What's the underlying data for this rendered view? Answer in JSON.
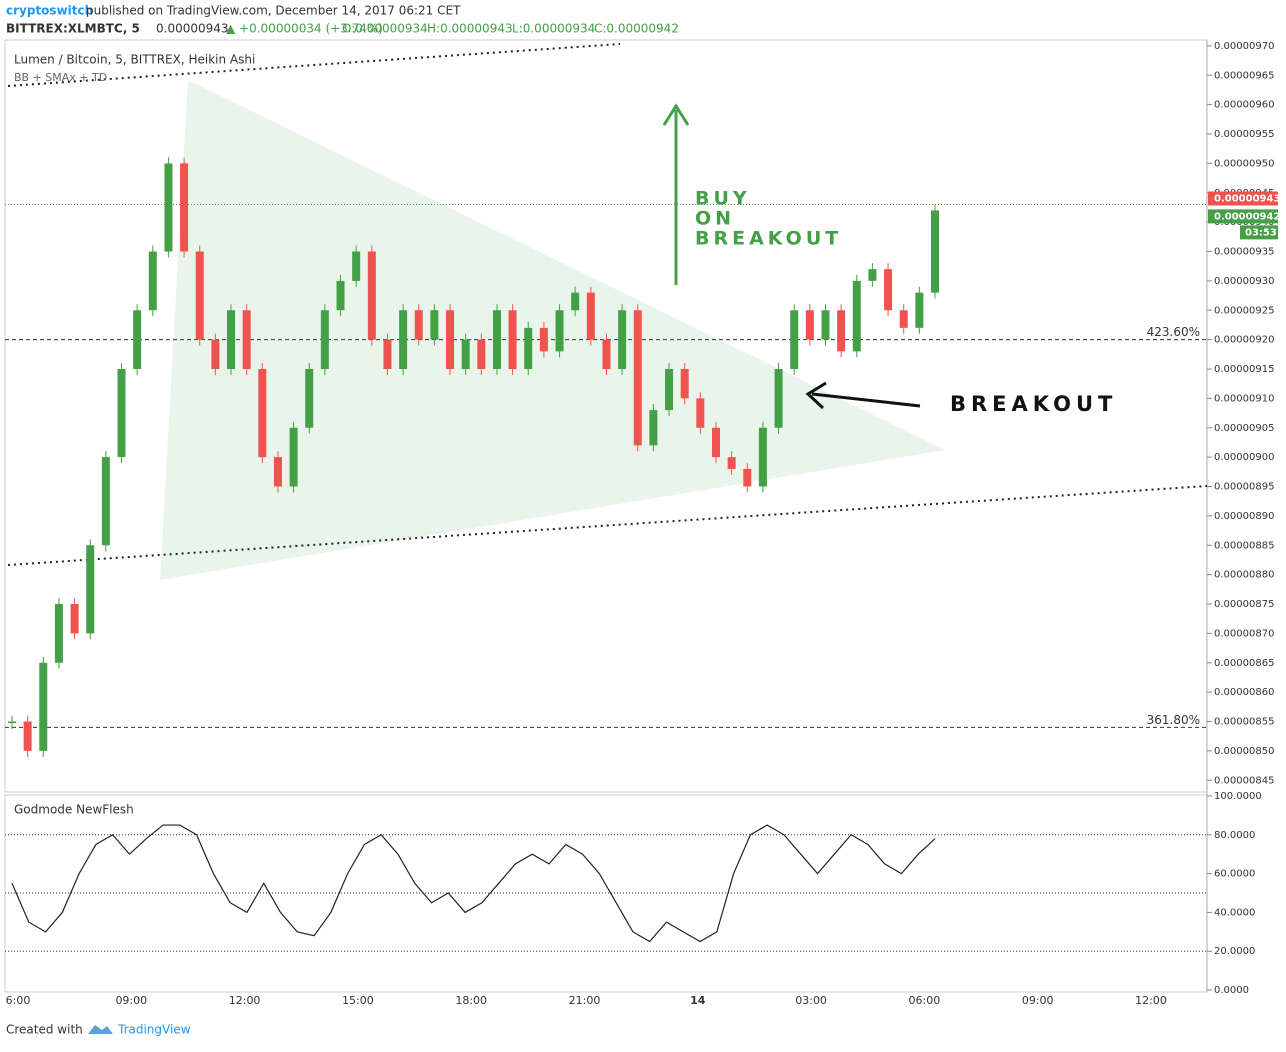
{
  "chart_data": {
    "type": "candles",
    "header": {
      "author": "cryptoswitch",
      "published": "published on TradingView.com, December 14, 2017 06:21 CET",
      "symbol": "BITTREX:XLMBTC, 5",
      "last": "0.00000943",
      "change": "▲ +0.00000034 (+3.74%)",
      "open": "O:0.00000934",
      "high": "H:0.00000943",
      "low": "L:0.00000934",
      "close": "C:0.00000942"
    },
    "title": "Lumen / Bitcoin, 5, BITTREX, Heikin Ashi",
    "subtitle": "BB + SMAx + TD",
    "values": [
      8.55e-06,
      8.5e-06,
      8.65e-06,
      8.75e-06,
      8.7e-06,
      8.85e-06,
      9e-06,
      9.15e-06,
      9.25e-06,
      9.35e-06,
      9.5e-06,
      9.35e-06,
      9.2e-06,
      9.15e-06,
      9.25e-06,
      9.15e-06,
      9e-06,
      8.95e-06,
      9.05e-06,
      9.15e-06,
      9.25e-06,
      9.3e-06,
      9.35e-06,
      9.2e-06,
      9.15e-06,
      9.25e-06,
      9.2e-06,
      9.25e-06,
      9.15e-06,
      9.2e-06,
      9.15e-06,
      9.25e-06,
      9.15e-06,
      9.22e-06,
      9.18e-06,
      9.25e-06,
      9.28e-06,
      9.2e-06,
      9.15e-06,
      9.25e-06,
      9.02e-06,
      9.08e-06,
      9.15e-06,
      9.1e-06,
      9.05e-06,
      9e-06,
      8.98e-06,
      8.95e-06,
      9.05e-06,
      9.15e-06,
      9.25e-06,
      9.2e-06,
      9.25e-06,
      9.18e-06,
      9.3e-06,
      9.32e-06,
      9.25e-06,
      9.22e-06,
      9.28e-06,
      9.42e-06
    ],
    "up_color": "#43a047",
    "down_color": "#ef5350",
    "ylim": [
      8.43e-06,
      9.71e-06
    ],
    "yticks": [
      {
        "value": 9.7e-06,
        "label": "0.00000970"
      },
      {
        "value": 9.65e-06,
        "label": "0.00000965"
      },
      {
        "value": 9.6e-06,
        "label": "0.00000960"
      },
      {
        "value": 9.55e-06,
        "label": "0.00000955"
      },
      {
        "value": 9.5e-06,
        "label": "0.00000950"
      },
      {
        "value": 9.45e-06,
        "label": "0.00000945"
      },
      {
        "value": 9.4e-06,
        "label": "0.00000940"
      },
      {
        "value": 9.35e-06,
        "label": "0.00000935"
      },
      {
        "value": 9.3e-06,
        "label": "0.00000930"
      },
      {
        "value": 9.25e-06,
        "label": "0.00000925"
      },
      {
        "value": 9.2e-06,
        "label": "0.00000920"
      },
      {
        "value": 9.15e-06,
        "label": "0.00000915"
      },
      {
        "value": 9.1e-06,
        "label": "0.00000910"
      },
      {
        "value": 9.05e-06,
        "label": "0.00000905"
      },
      {
        "value": 9e-06,
        "label": "0.00000900"
      },
      {
        "value": 8.95e-06,
        "label": "0.00000895"
      },
      {
        "value": 8.9e-06,
        "label": "0.00000890"
      },
      {
        "value": 8.85e-06,
        "label": "0.00000885"
      },
      {
        "value": 8.8e-06,
        "label": "0.00000880"
      },
      {
        "value": 8.75e-06,
        "label": "0.00000875"
      },
      {
        "value": 8.7e-06,
        "label": "0.00000870"
      },
      {
        "value": 8.65e-06,
        "label": "0.00000865"
      },
      {
        "value": 8.6e-06,
        "label": "0.00000860"
      },
      {
        "value": 8.55e-06,
        "label": "0.00000855"
      },
      {
        "value": 8.5e-06,
        "label": "0.00000850"
      },
      {
        "value": 8.45e-06,
        "label": "0.00000845"
      }
    ],
    "price_badges": [
      {
        "value": 9.43e-06,
        "label": "0.00000943",
        "color": "#ef5350"
      },
      {
        "value": 9.42e-06,
        "label": "0.00000942",
        "color": "#43a047"
      }
    ],
    "countdown": "03:53",
    "fib_levels": [
      {
        "value": 9.2e-06,
        "label": "423.60%"
      },
      {
        "value": 8.54e-06,
        "label": "361.80%"
      }
    ],
    "annotations": {
      "buy": [
        "BUY",
        "ON",
        "BREAKOUT"
      ],
      "breakout": "BREAKOUT"
    },
    "x_labels": [
      "6:00",
      "09:00",
      "12:00",
      "15:00",
      "18:00",
      "21:00",
      "14",
      "03:00",
      "06:00",
      "09:00",
      "12:00"
    ],
    "oscillator": {
      "title": "Godmode NewFlesh",
      "values": [
        55,
        35,
        30,
        40,
        60,
        75,
        80,
        70,
        78,
        85,
        85,
        80,
        60,
        45,
        40,
        55,
        40,
        30,
        28,
        40,
        60,
        75,
        80,
        70,
        55,
        45,
        50,
        40,
        45,
        55,
        65,
        70,
        65,
        75,
        70,
        60,
        45,
        30,
        25,
        35,
        30,
        25,
        30,
        60,
        80,
        85,
        80,
        70,
        60,
        70,
        80,
        75,
        65,
        60,
        70,
        78
      ],
      "ylim": [
        -1,
        100.5
      ],
      "yticks": [
        {
          "value": 100,
          "label": "100.0000"
        },
        {
          "value": 80,
          "label": "80.0000"
        },
        {
          "value": 60,
          "label": "60.0000"
        },
        {
          "value": 40,
          "label": "40.0000"
        },
        {
          "value": 20,
          "label": "20.0000"
        },
        {
          "value": 0,
          "label": "0.0000"
        }
      ],
      "levels": [
        80,
        50,
        20
      ]
    },
    "footer": {
      "created": "Created with",
      "brand": "TradingView"
    }
  }
}
